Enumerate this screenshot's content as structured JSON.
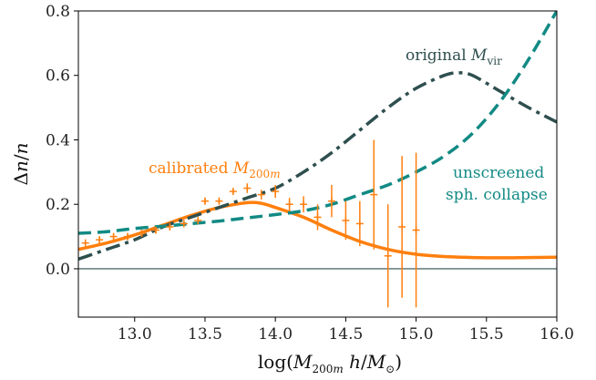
{
  "chart_data": {
    "type": "line",
    "xlabel": "log(M200m h/M⊙)",
    "ylabel": "Δn/n",
    "xlim": [
      12.6,
      16.0
    ],
    "ylim": [
      -0.15,
      0.8
    ],
    "xticks": [
      "13.0",
      "13.5",
      "14.0",
      "14.5",
      "15.0",
      "15.5",
      "16.0"
    ],
    "yticks": [
      "0.0",
      "0.2",
      "0.4",
      "0.6",
      "0.8"
    ],
    "grid": false,
    "legend": "none",
    "reference_line": {
      "y": 0.0,
      "color": "#2f4f4f"
    },
    "colors": {
      "calibrated": "#ff7f0e",
      "original": "#2f4f4f",
      "unscreened": "#128a84",
      "data": "#ff7f0e"
    },
    "annotations": [
      {
        "id": "original",
        "text": "original M",
        "sub": "vir"
      },
      {
        "id": "calibrated",
        "text": "calibrated M",
        "sub": "200m"
      },
      {
        "id": "unscreened1",
        "text": "unscreened"
      },
      {
        "id": "unscreened2",
        "text": "sph. collapse"
      }
    ],
    "series": [
      {
        "style": "solid",
        "color": "#ff7f0e",
        "x": [
          12.6,
          12.8,
          13.0,
          13.2,
          13.4,
          13.6,
          13.8,
          13.9,
          14.0,
          14.2,
          14.4,
          14.6,
          14.8,
          15.0,
          15.2,
          15.4,
          15.6,
          15.8,
          16.0
        ],
        "y": [
          0.06,
          0.08,
          0.105,
          0.135,
          0.165,
          0.19,
          0.205,
          0.203,
          0.19,
          0.16,
          0.12,
          0.085,
          0.06,
          0.045,
          0.038,
          0.035,
          0.034,
          0.035,
          0.036
        ]
      },
      {
        "style": "dashdot",
        "color": "#2f4f4f",
        "x": [
          12.6,
          12.8,
          13.0,
          13.2,
          13.4,
          13.6,
          13.8,
          14.0,
          14.2,
          14.4,
          14.6,
          14.8,
          15.0,
          15.2,
          15.3,
          15.4,
          15.6,
          15.8,
          16.0
        ],
        "y": [
          0.03,
          0.06,
          0.09,
          0.13,
          0.16,
          0.19,
          0.22,
          0.25,
          0.3,
          0.36,
          0.43,
          0.5,
          0.56,
          0.6,
          0.608,
          0.6,
          0.55,
          0.5,
          0.455
        ]
      },
      {
        "style": "dashed",
        "color": "#128a84",
        "x": [
          12.6,
          12.8,
          13.0,
          13.2,
          13.4,
          13.6,
          13.8,
          14.0,
          14.2,
          14.4,
          14.6,
          14.8,
          15.0,
          15.2,
          15.4,
          15.6,
          15.8,
          16.0
        ],
        "y": [
          0.11,
          0.115,
          0.125,
          0.132,
          0.14,
          0.148,
          0.158,
          0.168,
          0.18,
          0.2,
          0.23,
          0.26,
          0.3,
          0.35,
          0.42,
          0.52,
          0.65,
          0.8
        ]
      }
    ],
    "points": {
      "x": [
        12.65,
        12.75,
        12.85,
        12.95,
        13.05,
        13.15,
        13.25,
        13.35,
        13.45,
        13.5,
        13.6,
        13.7,
        13.8,
        13.9,
        14.0,
        14.1,
        14.2,
        14.3,
        14.4,
        14.5,
        14.6,
        14.7,
        14.8,
        14.9,
        15.0
      ],
      "y": [
        0.08,
        0.09,
        0.1,
        0.1,
        0.11,
        0.12,
        0.13,
        0.14,
        0.15,
        0.21,
        0.21,
        0.24,
        0.25,
        0.23,
        0.24,
        0.2,
        0.2,
        0.16,
        0.21,
        0.15,
        0.14,
        0.23,
        0.04,
        0.13,
        0.12
      ],
      "err": [
        0.01,
        0.01,
        0.01,
        0.01,
        0.01,
        0.01,
        0.01,
        0.01,
        0.01,
        0.01,
        0.01,
        0.01,
        0.015,
        0.015,
        0.02,
        0.02,
        0.025,
        0.04,
        0.05,
        0.06,
        0.07,
        0.17,
        0.16,
        0.22,
        0.24
      ]
    }
  }
}
